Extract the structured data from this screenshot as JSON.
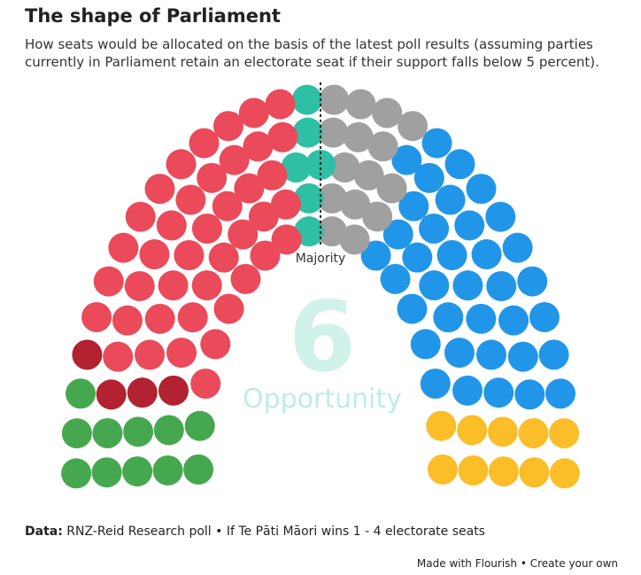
{
  "chart_data": {
    "type": "parliament",
    "title": "The shape of Parliament",
    "subtitle": "How seats would be allocated on the basis of the latest poll results (assuming parties currently in Parliament retain an electorate seat if their support falls below 5 percent).",
    "majority_label": "Majority",
    "series": [
      {
        "color": "#45a84f",
        "value": 11
      },
      {
        "color": "#b22230",
        "value": 4
      },
      {
        "color": "#ea4a5a",
        "value": 41
      },
      {
        "name": "Opportunity",
        "color": "#2ebfa5",
        "value": 6
      },
      {
        "color": "#a0a0a0",
        "value": 15
      },
      {
        "color": "#2196e8",
        "value": 36
      },
      {
        "color": "#fbbd28",
        "value": 10
      }
    ],
    "source_label": "Data:",
    "source": "RNZ-Reid Research poll • If Te Pāti Māori wins 1 - 4 electorate seats",
    "credit": "Made with Flourish",
    "credit_link": "Create your own"
  }
}
